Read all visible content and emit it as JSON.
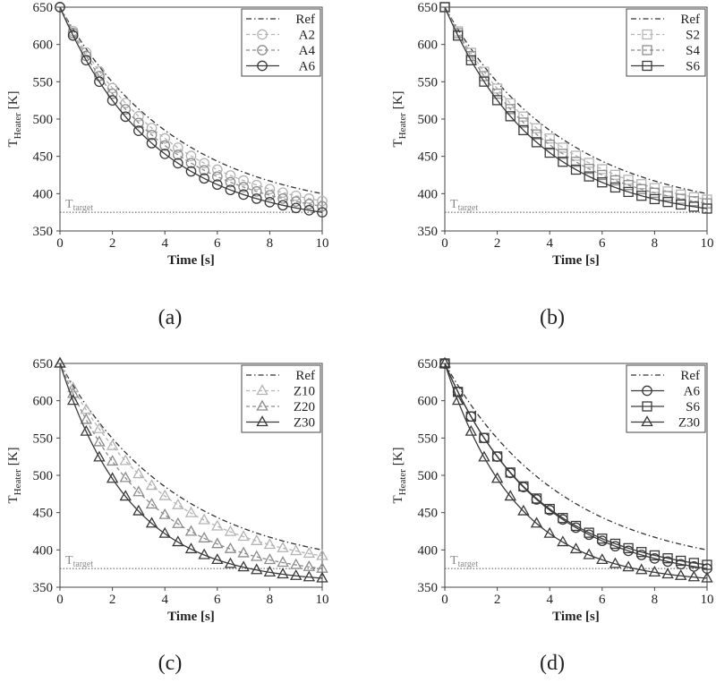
{
  "chart_data": [
    {
      "type": "line",
      "caption": "(a)",
      "xlabel": "Time [s]",
      "ylabel": "T",
      "ylabel_sub": "Heater",
      "ylabel_unit": "[K]",
      "xlim": [
        0,
        10
      ],
      "ylim": [
        350,
        650
      ],
      "xticks": [
        0,
        2,
        4,
        6,
        8,
        10
      ],
      "yticks": [
        350,
        400,
        450,
        500,
        550,
        600,
        650
      ],
      "target": {
        "value": 375,
        "label": "T",
        "label_sub": "target"
      },
      "series": [
        {
          "name": "Ref",
          "color": "#333333",
          "dash": "dashdot",
          "marker": "none",
          "T0": 650,
          "Tend": 400,
          "tau": 4.5
        },
        {
          "name": "A2",
          "color": "#b4b4b4",
          "dash": "dashed",
          "marker": "circle",
          "T0": 650,
          "Tend": 390,
          "tau": 4.2
        },
        {
          "name": "A4",
          "color": "#8c8c8c",
          "dash": "dashed",
          "marker": "circle",
          "T0": 650,
          "Tend": 383,
          "tau": 3.9
        },
        {
          "name": "A6",
          "color": "#3a3a3a",
          "dash": "solid",
          "marker": "circle",
          "T0": 650,
          "Tend": 375,
          "tau": 3.6
        }
      ]
    },
    {
      "type": "line",
      "caption": "(b)",
      "xlabel": "Time [s]",
      "ylabel": "T",
      "ylabel_sub": "Heater",
      "ylabel_unit": "[K]",
      "xlim": [
        0,
        10
      ],
      "ylim": [
        350,
        650
      ],
      "xticks": [
        0,
        2,
        4,
        6,
        8,
        10
      ],
      "yticks": [
        350,
        400,
        450,
        500,
        550,
        600,
        650
      ],
      "target": {
        "value": 375,
        "label": "T",
        "label_sub": "target"
      },
      "series": [
        {
          "name": "Ref",
          "color": "#333333",
          "dash": "dashdot",
          "marker": "none",
          "T0": 650,
          "Tend": 400,
          "tau": 4.5
        },
        {
          "name": "S2",
          "color": "#b4b4b4",
          "dash": "dashed",
          "marker": "square",
          "T0": 650,
          "Tend": 392,
          "tau": 4.1
        },
        {
          "name": "S4",
          "color": "#8c8c8c",
          "dash": "dashed",
          "marker": "square",
          "T0": 650,
          "Tend": 387,
          "tau": 3.8
        },
        {
          "name": "S6",
          "color": "#3a3a3a",
          "dash": "solid",
          "marker": "square",
          "T0": 650,
          "Tend": 380,
          "tau": 3.5
        }
      ]
    },
    {
      "type": "line",
      "caption": "(c)",
      "xlabel": "Time [s]",
      "ylabel": "T",
      "ylabel_sub": "Heater",
      "ylabel_unit": "[K]",
      "xlim": [
        0,
        10
      ],
      "ylim": [
        350,
        650
      ],
      "xticks": [
        0,
        2,
        4,
        6,
        8,
        10
      ],
      "yticks": [
        350,
        400,
        450,
        500,
        550,
        600,
        650
      ],
      "target": {
        "value": 375,
        "label": "T",
        "label_sub": "target"
      },
      "series": [
        {
          "name": "Ref",
          "color": "#333333",
          "dash": "dashdot",
          "marker": "none",
          "T0": 650,
          "Tend": 400,
          "tau": 4.5
        },
        {
          "name": "Z10",
          "color": "#b4b4b4",
          "dash": "dashed",
          "marker": "triangle",
          "T0": 650,
          "Tend": 392,
          "tau": 4.0
        },
        {
          "name": "Z20",
          "color": "#8c8c8c",
          "dash": "dashed",
          "marker": "triangle",
          "T0": 650,
          "Tend": 375,
          "tau": 3.3
        },
        {
          "name": "Z30",
          "color": "#3a3a3a",
          "dash": "solid",
          "marker": "triangle",
          "T0": 650,
          "Tend": 362,
          "tau": 2.7
        }
      ]
    },
    {
      "type": "line",
      "caption": "(d)",
      "xlabel": "Time [s]",
      "ylabel": "T",
      "ylabel_sub": "Heater",
      "ylabel_unit": "[K]",
      "xlim": [
        0,
        10
      ],
      "ylim": [
        350,
        650
      ],
      "xticks": [
        0,
        2,
        4,
        6,
        8,
        10
      ],
      "yticks": [
        350,
        400,
        450,
        500,
        550,
        600,
        650
      ],
      "target": {
        "value": 375,
        "label": "T",
        "label_sub": "target"
      },
      "series": [
        {
          "name": "Ref",
          "color": "#333333",
          "dash": "dashdot",
          "marker": "none",
          "T0": 650,
          "Tend": 400,
          "tau": 4.5
        },
        {
          "name": "A6",
          "color": "#3a3a3a",
          "dash": "solid",
          "marker": "circle",
          "T0": 650,
          "Tend": 375,
          "tau": 3.6
        },
        {
          "name": "S6",
          "color": "#3a3a3a",
          "dash": "solid",
          "marker": "square",
          "T0": 650,
          "Tend": 380,
          "tau": 3.5
        },
        {
          "name": "Z30",
          "color": "#3a3a3a",
          "dash": "solid",
          "marker": "triangle",
          "T0": 650,
          "Tend": 362,
          "tau": 2.7
        }
      ]
    }
  ]
}
